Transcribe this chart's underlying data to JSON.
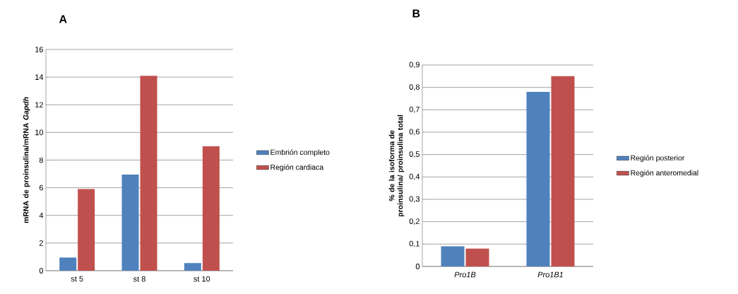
{
  "chart_data": [
    {
      "type": "bar",
      "title": "A",
      "ylabel": "mRNA de proinsulina/mRNA  *Gapdh*",
      "categories": [
        "st 5",
        "st 8",
        "st 10"
      ],
      "series": [
        {
          "name": "Embrión completo",
          "color": "#4f81bd",
          "values": [
            0.95,
            6.95,
            0.55
          ]
        },
        {
          "name": "Región cardiaca",
          "color": "#c0504d",
          "values": [
            5.9,
            14.1,
            9.0
          ]
        }
      ],
      "ylim": [
        0,
        16
      ],
      "yticks": [
        0,
        2,
        4,
        6,
        8,
        10,
        12,
        14,
        16
      ],
      "grid": "y",
      "legend": "right"
    },
    {
      "type": "bar",
      "title": "B",
      "ylabel": "% de la isoforma  de proinsulina/ proinsulina total",
      "categories": [
        "Pro1B",
        "Pro1B1"
      ],
      "series": [
        {
          "name": "Región posterior",
          "color": "#4f81bd",
          "values": [
            0.09,
            0.78
          ]
        },
        {
          "name": "Región anteromedial",
          "color": "#c0504d",
          "values": [
            0.08,
            0.85
          ]
        }
      ],
      "ylim": [
        0,
        0.9
      ],
      "yticks": [
        0,
        {
          "value": 0.1,
          "label": "0,1"
        },
        {
          "value": 0.2,
          "label": "0,2"
        },
        {
          "value": 0.3,
          "label": "0,3"
        },
        {
          "value": 0.4,
          "label": "0,4"
        },
        {
          "value": 0.5,
          "label": "0,5"
        },
        {
          "value": 0.6,
          "label": "0,6"
        },
        {
          "value": 0.7,
          "label": "0,7"
        },
        {
          "value": 0.8,
          "label": "0,8"
        },
        {
          "value": 0.9,
          "label": "0,9"
        }
      ],
      "grid": "y",
      "legend": "right"
    }
  ]
}
